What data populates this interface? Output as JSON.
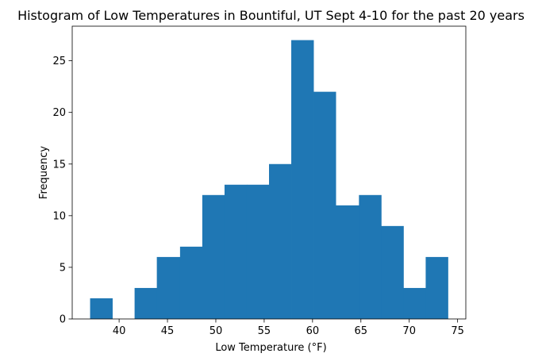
{
  "chart_data": {
    "type": "bar",
    "title": "Histogram of Low Temperatures in Bountiful, UT Sept 4-10 for the past 20 years",
    "xlabel": "Low Temperature (°F)",
    "ylabel": "Frequency",
    "bar_color": "#1f77b4",
    "grid": false,
    "bins": [
      {
        "x0": 37.0,
        "x1": 39.3,
        "count": 2
      },
      {
        "x0": 39.3,
        "x1": 41.6,
        "count": 0
      },
      {
        "x0": 41.6,
        "x1": 43.9,
        "count": 3
      },
      {
        "x0": 43.9,
        "x1": 46.3,
        "count": 6
      },
      {
        "x0": 46.3,
        "x1": 48.6,
        "count": 7
      },
      {
        "x0": 48.6,
        "x1": 50.9,
        "count": 12
      },
      {
        "x0": 50.9,
        "x1": 53.2,
        "count": 13
      },
      {
        "x0": 53.2,
        "x1": 55.5,
        "count": 13
      },
      {
        "x0": 55.5,
        "x1": 57.8,
        "count": 15
      },
      {
        "x0": 57.8,
        "x1": 60.1,
        "count": 27
      },
      {
        "x0": 60.1,
        "x1": 62.4,
        "count": 22
      },
      {
        "x0": 62.4,
        "x1": 64.8,
        "count": 11
      },
      {
        "x0": 64.8,
        "x1": 67.1,
        "count": 12
      },
      {
        "x0": 67.1,
        "x1": 69.4,
        "count": 9
      },
      {
        "x0": 69.4,
        "x1": 71.7,
        "count": 3
      },
      {
        "x0": 71.7,
        "x1": 74.0,
        "count": 6
      }
    ],
    "xlim": [
      35.15,
      75.85
    ],
    "ylim": [
      0,
      28.35
    ],
    "xticks": [
      40,
      45,
      50,
      55,
      60,
      65,
      70,
      75
    ],
    "yticks": [
      0,
      5,
      10,
      15,
      20,
      25
    ]
  }
}
